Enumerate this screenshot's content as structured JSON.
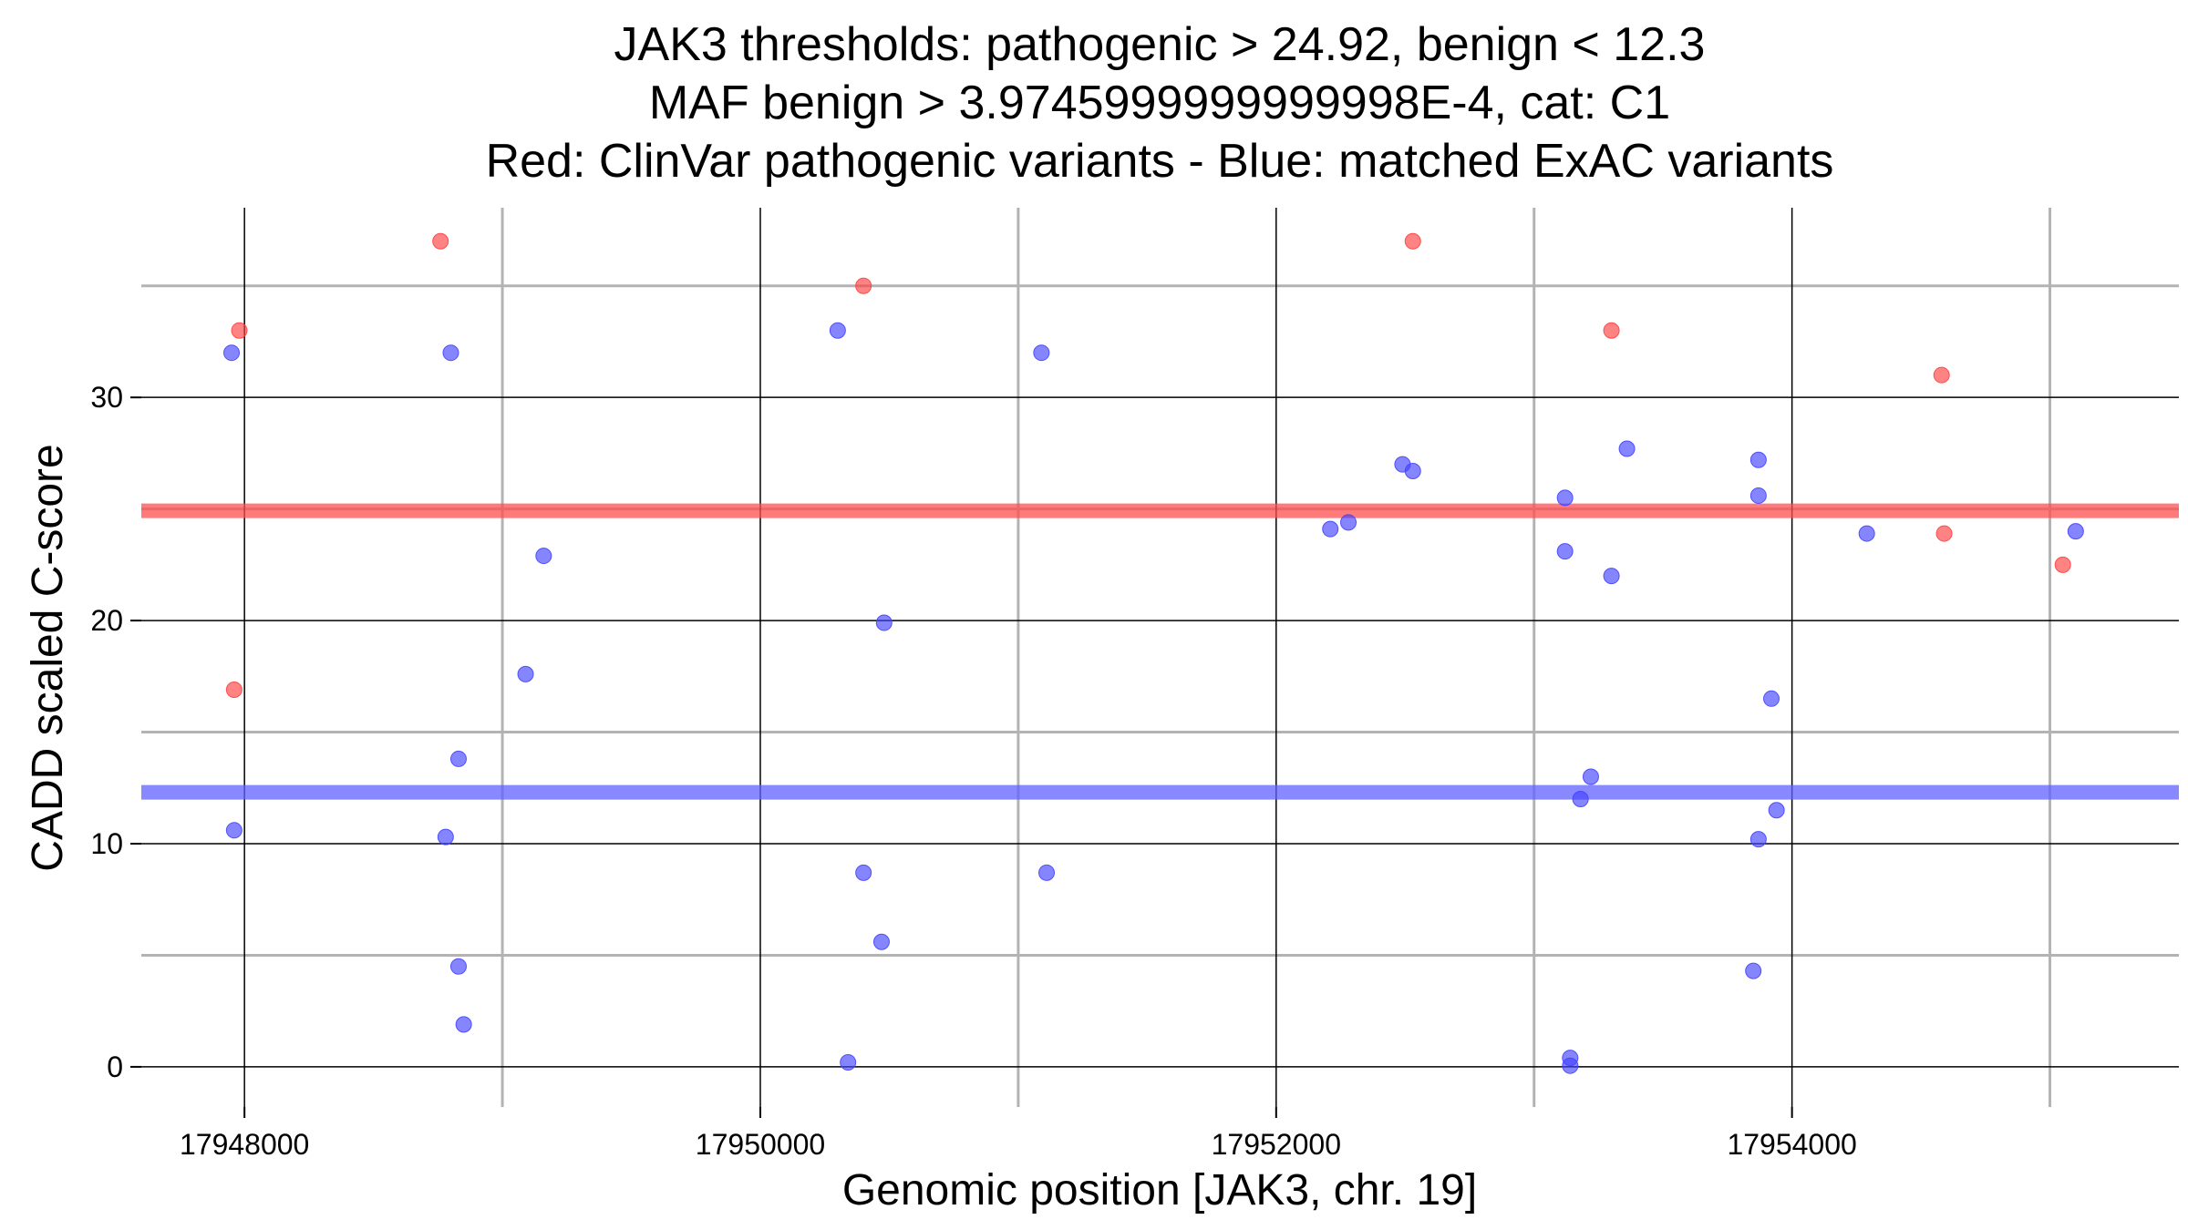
{
  "chart_data": {
    "type": "scatter",
    "title": [
      "JAK3 thresholds: pathogenic > 24.92, benign < 12.3",
      "MAF benign > 3.9745999999999998E-4, cat: C1",
      "Red: ClinVar pathogenic variants - Blue: matched ExAC variants"
    ],
    "xlabel": "Genomic position [JAK3, chr. 19]",
    "ylabel": "CADD scaled C-score",
    "xlim": [
      17947600,
      17955500
    ],
    "ylim": [
      -1.8,
      38.5
    ],
    "x_ticks": [
      17948000,
      17950000,
      17952000,
      17954000
    ],
    "x_tick_labels": [
      "17948000",
      "17950000",
      "17952000",
      "17954000"
    ],
    "x_minor_grid": [
      17949000,
      17951000,
      17953000,
      17955000
    ],
    "y_ticks": [
      0,
      10,
      20,
      30
    ],
    "y_tick_labels": [
      "0",
      "10",
      "20",
      "30"
    ],
    "y_minor_grid": [
      5,
      15,
      25,
      35
    ],
    "grid": true,
    "thresholds": [
      {
        "name": "pathogenic",
        "value": 24.92,
        "color": "#ff4d4d"
      },
      {
        "name": "benign",
        "value": 12.3,
        "color": "#6060ff"
      }
    ],
    "series": [
      {
        "color": "#ff4040",
        "points": [
          {
            "x": 17947980,
            "y": 33
          },
          {
            "x": 17947960,
            "y": 16.9
          },
          {
            "x": 17948760,
            "y": 37
          },
          {
            "x": 17950400,
            "y": 35
          },
          {
            "x": 17952530,
            "y": 37
          },
          {
            "x": 17953300,
            "y": 33
          },
          {
            "x": 17954580,
            "y": 31
          },
          {
            "x": 17954590,
            "y": 23.9
          },
          {
            "x": 17955050,
            "y": 22.5
          }
        ]
      },
      {
        "color": "#4444ff",
        "points": [
          {
            "x": 17947950,
            "y": 32
          },
          {
            "x": 17947960,
            "y": 10.6
          },
          {
            "x": 17948800,
            "y": 32
          },
          {
            "x": 17948780,
            "y": 10.3
          },
          {
            "x": 17948830,
            "y": 13.8
          },
          {
            "x": 17948830,
            "y": 4.5
          },
          {
            "x": 17948850,
            "y": 1.9
          },
          {
            "x": 17949090,
            "y": 17.6
          },
          {
            "x": 17949160,
            "y": 22.9
          },
          {
            "x": 17950300,
            "y": 33
          },
          {
            "x": 17950340,
            "y": 0.2
          },
          {
            "x": 17950400,
            "y": 8.7
          },
          {
            "x": 17950480,
            "y": 19.9
          },
          {
            "x": 17950470,
            "y": 5.6
          },
          {
            "x": 17951090,
            "y": 32
          },
          {
            "x": 17951110,
            "y": 8.7
          },
          {
            "x": 17952210,
            "y": 24.1
          },
          {
            "x": 17952280,
            "y": 24.4
          },
          {
            "x": 17952490,
            "y": 27
          },
          {
            "x": 17952530,
            "y": 26.7
          },
          {
            "x": 17953120,
            "y": 25.5
          },
          {
            "x": 17953120,
            "y": 23.1
          },
          {
            "x": 17953140,
            "y": 0.4
          },
          {
            "x": 17953140,
            "y": 0.05
          },
          {
            "x": 17953180,
            "y": 12
          },
          {
            "x": 17953220,
            "y": 13
          },
          {
            "x": 17953300,
            "y": 22
          },
          {
            "x": 17953360,
            "y": 27.7
          },
          {
            "x": 17953870,
            "y": 27.2
          },
          {
            "x": 17953870,
            "y": 25.6
          },
          {
            "x": 17953870,
            "y": 10.2
          },
          {
            "x": 17953850,
            "y": 4.3
          },
          {
            "x": 17953920,
            "y": 16.5
          },
          {
            "x": 17953940,
            "y": 11.5
          },
          {
            "x": 17954290,
            "y": 23.9
          },
          {
            "x": 17955100,
            "y": 24
          }
        ]
      }
    ]
  }
}
